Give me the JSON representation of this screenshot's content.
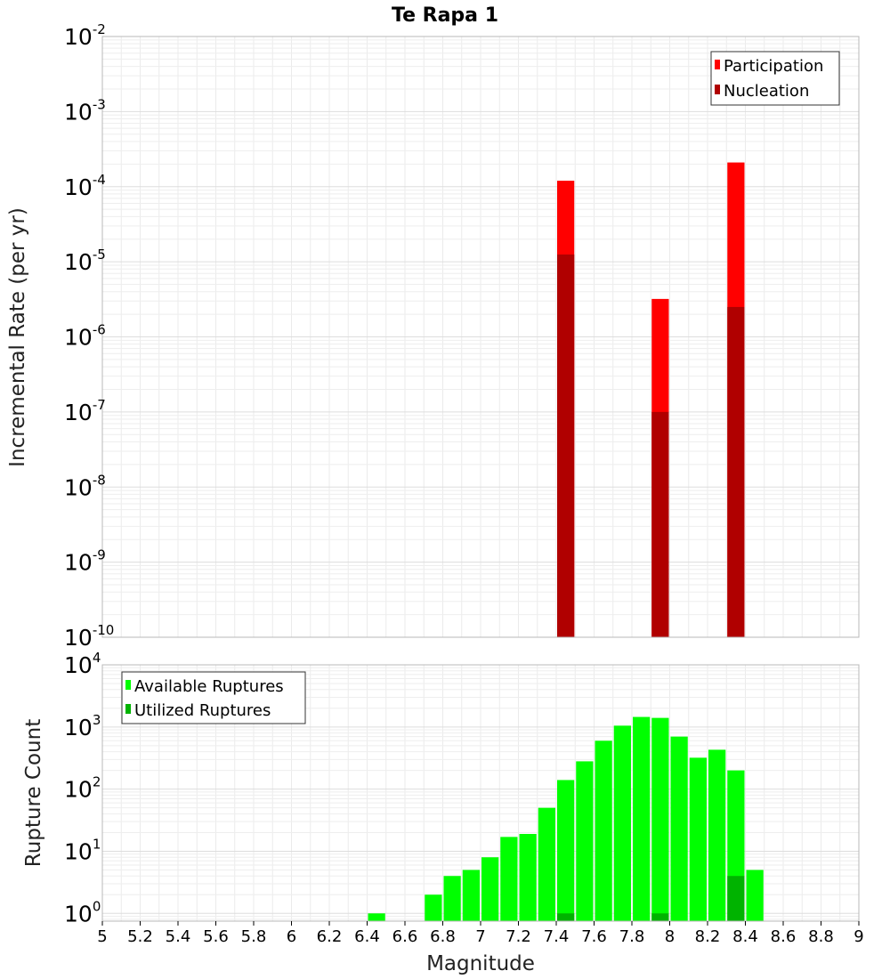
{
  "chart_data": [
    {
      "type": "bar",
      "title": "Te Rapa 1",
      "xlabel": "",
      "ylabel": "Incremental Rate (per yr)",
      "yscale": "log",
      "ylim": [
        1e-10,
        0.01
      ],
      "xlim": [
        5,
        9
      ],
      "bin_width": 0.1,
      "y_tick_exponents": [
        "-2",
        "-3",
        "-4",
        "-5",
        "-6",
        "-7",
        "-8",
        "-9",
        "-10"
      ],
      "legend": {
        "placement": "top-right",
        "entries": [
          "Participation",
          "Nucleation"
        ]
      },
      "colors": {
        "Participation": "#ff0000",
        "Nucleation": "#b00000"
      },
      "series": [
        {
          "name": "Participation",
          "x": [
            7.45,
            7.95,
            8.35
          ],
          "values": [
            0.00012,
            3.2e-06,
            0.00021
          ]
        },
        {
          "name": "Nucleation",
          "x": [
            7.45,
            7.95,
            8.35
          ],
          "values": [
            1.25e-05,
            1e-07,
            2.5e-06
          ]
        }
      ]
    },
    {
      "type": "bar",
      "title": "",
      "xlabel": "Magnitude",
      "ylabel": "Rupture Count",
      "yscale": "log",
      "ylim": [
        0.75,
        10000
      ],
      "xlim": [
        5,
        9
      ],
      "bin_width": 0.1,
      "y_tick_exponents": [
        "4",
        "3",
        "2",
        "1",
        "0"
      ],
      "x_ticks": [
        "5",
        "5.2",
        "5.4",
        "5.6",
        "5.8",
        "6",
        "6.2",
        "6.4",
        "6.6",
        "6.8",
        "7",
        "7.2",
        "7.4",
        "7.6",
        "7.8",
        "8",
        "8.2",
        "8.4",
        "8.6",
        "8.8",
        "9"
      ],
      "legend": {
        "placement": "top-left",
        "entries": [
          "Available Ruptures",
          "Utilized Ruptures"
        ]
      },
      "colors": {
        "Available Ruptures": "#00ff00",
        "Utilized Ruptures": "#00b300"
      },
      "series": [
        {
          "name": "Available Ruptures",
          "x": [
            6.45,
            6.75,
            6.85,
            6.95,
            7.05,
            7.15,
            7.25,
            7.35,
            7.45,
            7.55,
            7.65,
            7.75,
            7.85,
            7.95,
            8.05,
            8.15,
            8.25,
            8.35,
            8.45
          ],
          "values": [
            1,
            2,
            4,
            5,
            8,
            17,
            19,
            50,
            140,
            280,
            600,
            1050,
            1450,
            1400,
            700,
            320,
            430,
            200,
            5
          ]
        },
        {
          "name": "Utilized Ruptures",
          "x": [
            7.45,
            7.95,
            8.35
          ],
          "values": [
            1,
            1,
            4
          ]
        }
      ]
    }
  ]
}
